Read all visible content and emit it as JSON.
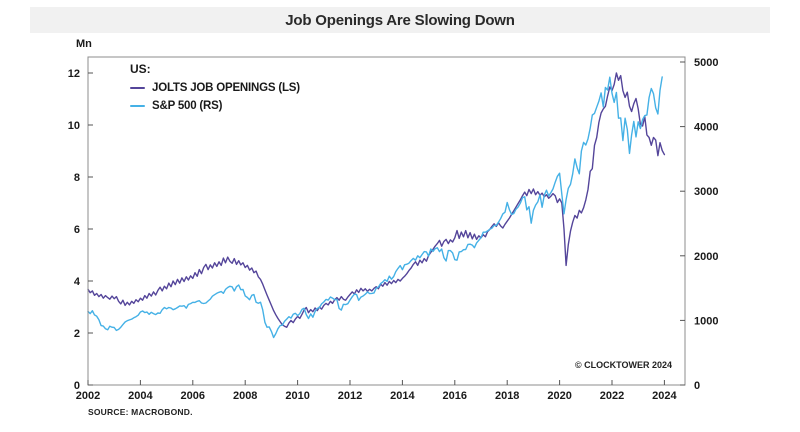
{
  "title": "Job Openings Are Slowing Down",
  "source": "SOURCE: MACROBOND.",
  "copyright": "© CLOCKTOWER 2024",
  "chart_data": {
    "type": "line",
    "title": "Job Openings Are Slowing Down",
    "legend": {
      "header": "US:",
      "position": "top-left"
    },
    "x_axis": {
      "range": [
        2002,
        2024.8
      ],
      "tick_years": [
        2002,
        2004,
        2006,
        2008,
        2010,
        2012,
        2014,
        2016,
        2018,
        2020,
        2022,
        2024
      ]
    },
    "left_axis": {
      "unit": "Mn",
      "range": [
        0,
        12.6
      ],
      "ticks": [
        0,
        2,
        4,
        6,
        8,
        10,
        12
      ]
    },
    "right_axis": {
      "range": [
        0,
        5000
      ],
      "ticks": [
        0,
        1000,
        2000,
        3000,
        4000,
        5000
      ]
    },
    "grid": false,
    "series": [
      {
        "name": "JOLTS JOB OPENINGS (LS)",
        "axis": "left",
        "color": "#54459a",
        "start_year": 2002,
        "points_per_year": 12,
        "values": [
          3.68,
          3.55,
          3.62,
          3.45,
          3.52,
          3.4,
          3.48,
          3.34,
          3.44,
          3.36,
          3.3,
          3.42,
          3.32,
          3.4,
          3.22,
          3.12,
          3.26,
          3.06,
          3.18,
          3.08,
          3.22,
          3.14,
          3.28,
          3.2,
          3.34,
          3.26,
          3.44,
          3.34,
          3.52,
          3.42,
          3.58,
          3.46,
          3.64,
          3.76,
          3.62,
          3.8,
          3.7,
          3.92,
          3.78,
          4.0,
          3.86,
          4.06,
          3.92,
          4.12,
          3.98,
          4.16,
          4.04,
          4.2,
          4.1,
          4.32,
          4.18,
          4.44,
          4.28,
          4.52,
          4.64,
          4.44,
          4.62,
          4.5,
          4.7,
          4.56,
          4.74,
          4.6,
          4.88,
          4.7,
          4.92,
          4.76,
          4.68,
          4.86,
          4.64,
          4.78,
          4.62,
          4.7,
          4.52,
          4.6,
          4.42,
          4.5,
          4.32,
          4.38,
          4.16,
          4.06,
          3.88,
          3.66,
          3.46,
          3.26,
          3.06,
          2.86,
          2.7,
          2.56,
          2.44,
          2.32,
          2.26,
          2.22,
          2.38,
          2.48,
          2.4,
          2.54,
          2.64,
          2.56,
          2.72,
          2.88,
          2.98,
          2.78,
          2.9,
          2.82,
          2.96,
          2.86,
          3.0,
          2.92,
          3.06,
          3.14,
          3.08,
          3.22,
          3.14,
          3.28,
          3.36,
          3.26,
          3.4,
          3.3,
          3.26,
          3.38,
          3.48,
          3.58,
          3.5,
          3.66,
          3.56,
          3.72,
          3.62,
          3.7,
          3.6,
          3.68,
          3.62,
          3.72,
          3.78,
          3.7,
          3.88,
          3.8,
          3.94,
          3.84,
          3.98,
          3.9,
          4.02,
          3.94,
          4.06,
          4.0,
          4.1,
          4.18,
          4.28,
          4.4,
          4.5,
          4.64,
          4.74,
          4.6,
          4.8,
          4.7,
          4.86,
          4.76,
          4.98,
          5.1,
          5.22,
          5.34,
          5.44,
          5.56,
          5.34,
          5.52,
          5.6,
          5.44,
          5.58,
          5.5,
          5.66,
          5.94,
          5.64,
          5.88,
          5.7,
          5.94,
          5.66,
          5.86,
          5.62,
          5.8,
          5.6,
          5.74,
          5.66,
          5.78,
          5.7,
          5.9,
          5.98,
          6.1,
          6.2,
          6.1,
          6.24,
          6.12,
          6.04,
          6.18,
          6.3,
          6.42,
          6.56,
          6.7,
          6.84,
          6.98,
          7.12,
          7.28,
          7.42,
          7.28,
          7.52,
          7.36,
          7.54,
          7.32,
          7.44,
          7.3,
          7.38,
          7.24,
          7.32,
          7.18,
          7.26,
          7.36,
          7.28,
          7.02,
          7.16,
          7.0,
          6.0,
          4.6,
          5.4,
          5.92,
          6.26,
          6.52,
          6.42,
          6.72,
          6.62,
          6.82,
          7.12,
          7.52,
          8.22,
          8.32,
          9.22,
          9.52,
          10.1,
          10.46,
          10.62,
          10.72,
          11.12,
          11.46,
          11.32,
          11.56,
          12.0,
          11.72,
          11.9,
          11.32,
          11.06,
          11.26,
          10.72,
          10.52,
          10.82,
          11.02,
          10.62,
          10.02,
          9.96,
          10.32,
          9.62,
          9.52,
          9.22,
          9.52,
          9.42,
          8.82,
          9.32,
          9.02,
          8.86
        ]
      },
      {
        "name": "S&P 500 (RS)",
        "axis": "right",
        "color": "#45b1e6",
        "start_year": 2002,
        "points_per_year": 12,
        "values": [
          1140,
          1105,
          1150,
          1085,
          1065,
          1010,
          920,
          912,
          870,
          855,
          910,
          895,
          890,
          845,
          860,
          895,
          935,
          975,
          995,
          1008,
          1020,
          1040,
          1058,
          1080,
          1130,
          1145,
          1120,
          1130,
          1095,
          1125,
          1105,
          1090,
          1115,
          1110,
          1165,
          1200,
          1180,
          1200,
          1190,
          1165,
          1180,
          1200,
          1225,
          1220,
          1228,
          1190,
          1248,
          1260,
          1280,
          1278,
          1295,
          1305,
          1270,
          1262,
          1270,
          1300,
          1330,
          1375,
          1398,
          1420,
          1435,
          1448,
          1420,
          1480,
          1510,
          1528,
          1520,
          1455,
          1522,
          1548,
          1475,
          1478,
          1380,
          1355,
          1320,
          1388,
          1400,
          1280,
          1265,
          1282,
          1165,
          970,
          895,
          900,
          830,
          735,
          795,
          870,
          920,
          925,
          985,
          1020,
          1058,
          1035,
          1095,
          1110,
          1075,
          1105,
          1170,
          1188,
          1090,
          1030,
          1100,
          1050,
          1140,
          1185,
          1198,
          1255,
          1285,
          1325,
          1315,
          1362,
          1345,
          1320,
          1325,
          1185,
          1160,
          1250,
          1245,
          1258,
          1315,
          1365,
          1405,
          1400,
          1310,
          1360,
          1378,
          1405,
          1440,
          1415,
          1418,
          1425,
          1500,
          1515,
          1570,
          1595,
          1630,
          1605,
          1685,
          1638,
          1680,
          1755,
          1805,
          1848,
          1785,
          1860,
          1870,
          1885,
          1925,
          1960,
          1932,
          2000,
          1970,
          2020,
          2065,
          2060,
          1995,
          2105,
          2068,
          2110,
          2125,
          2065,
          2105,
          1970,
          1920,
          2080,
          2080,
          2045,
          1940,
          1932,
          2060,
          2065,
          2095,
          2098,
          2175,
          2180,
          2165,
          2125,
          2200,
          2240,
          2280,
          2365,
          2365,
          2385,
          2410,
          2428,
          2470,
          2470,
          2520,
          2575,
          2648,
          2675,
          2825,
          2715,
          2640,
          2655,
          2720,
          2755,
          2815,
          2900,
          2915,
          2710,
          2760,
          2505,
          2705,
          2785,
          2835,
          2945,
          2750,
          2940,
          3015,
          2925,
          2978,
          3035,
          3140,
          3230,
          3278,
          2955,
          2650,
          2870,
          3045,
          3105,
          3270,
          3500,
          3365,
          3270,
          3622,
          3755,
          3715,
          3810,
          3975,
          4180,
          4205,
          4300,
          4395,
          4522,
          4305,
          4605,
          4565,
          4765,
          4515,
          4375,
          4530,
          4130,
          4135,
          3785,
          4130,
          3955,
          3585,
          3870,
          4080,
          3840,
          4075,
          3970,
          4110,
          4170,
          4180,
          4450,
          4590,
          4510,
          4290,
          4195,
          4560,
          4770
        ]
      }
    ]
  }
}
